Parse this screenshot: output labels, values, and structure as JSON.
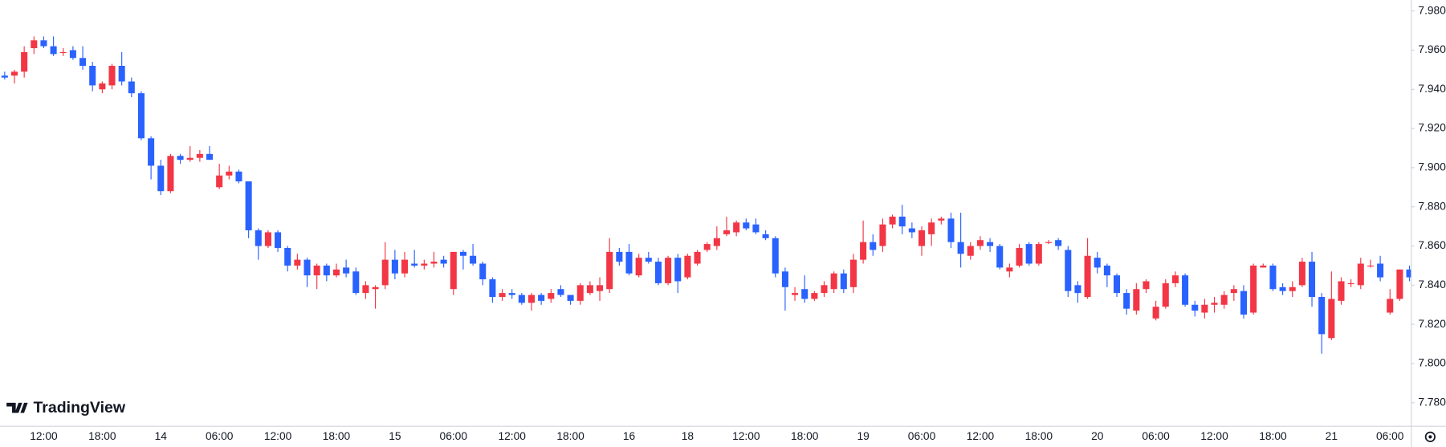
{
  "chart_data": {
    "type": "candlestick",
    "watermark": "TradingView",
    "up_color": "#f23645",
    "down_color": "#2962ff",
    "categories": [
      null,
      null,
      null,
      null,
      "12:00",
      null,
      null,
      null,
      null,
      null,
      "18:00",
      null,
      null,
      null,
      null,
      null,
      "14",
      null,
      null,
      null,
      null,
      null,
      "06:00",
      null,
      null,
      null,
      null,
      null,
      "12:00",
      null,
      null,
      null,
      null,
      null,
      "18:00",
      null,
      null,
      null,
      null,
      null,
      "15",
      null,
      null,
      null,
      null,
      null,
      "06:00",
      null,
      null,
      null,
      null,
      null,
      "12:00",
      null,
      null,
      null,
      null,
      null,
      "18:00",
      null,
      null,
      null,
      null,
      null,
      "16",
      null,
      null,
      null,
      null,
      null,
      "18",
      null,
      null,
      null,
      null,
      null,
      "12:00",
      null,
      null,
      null,
      null,
      null,
      "18:00",
      null,
      null,
      null,
      null,
      null,
      "19",
      null,
      null,
      null,
      null,
      null,
      "06:00",
      null,
      null,
      null,
      null,
      null,
      "12:00",
      null,
      null,
      null,
      null,
      null,
      "18:00",
      null,
      null,
      null,
      null,
      null,
      "20",
      null,
      null,
      null,
      null,
      null,
      "06:00",
      null,
      null,
      null,
      null,
      null,
      "12:00",
      null,
      null,
      null,
      null,
      null,
      "18:00",
      null,
      null,
      null,
      null,
      null,
      "21",
      null,
      null,
      null,
      null,
      null,
      "06:00",
      null,
      null
    ],
    "open": [
      7.947,
      7.947,
      7.949,
      7.961,
      7.965,
      7.962,
      7.959,
      7.96,
      7.956,
      7.952,
      7.94,
      7.942,
      7.952,
      7.944,
      7.938,
      7.915,
      7.901,
      7.888,
      7.906,
      7.904,
      7.905,
      7.907,
      7.89,
      7.896,
      7.898,
      7.893,
      7.868,
      7.86,
      7.867,
      7.859,
      7.85,
      7.853,
      7.845,
      7.85,
      7.845,
      7.849,
      7.847,
      7.836,
      7.838,
      7.84,
      7.853,
      7.846,
      7.851,
      7.85,
      7.851,
      7.853,
      7.838,
      7.857,
      7.855,
      7.851,
      7.843,
      7.834,
      7.836,
      7.835,
      7.831,
      7.835,
      7.833,
      7.838,
      7.835,
      7.832,
      7.836,
      7.837,
      7.838,
      7.857,
      7.857,
      7.845,
      7.854,
      7.852,
      7.841,
      7.854,
      7.844,
      7.851,
      7.858,
      7.86,
      7.866,
      7.867,
      7.872,
      7.871,
      7.866,
      7.864,
      7.847,
      7.835,
      7.838,
      7.833,
      7.836,
      7.838,
      7.846,
      7.839,
      7.853,
      7.862,
      7.86,
      7.871,
      7.875,
      7.869,
      7.86,
      7.866,
      7.873,
      7.874,
      7.862,
      7.855,
      7.86,
      7.862,
      7.86,
      7.847,
      7.85,
      7.861,
      7.851,
      7.862,
      7.863,
      7.858,
      7.84,
      7.834,
      7.854,
      7.85,
      7.845,
      7.836,
      7.827,
      7.838,
      7.823,
      7.829,
      7.841,
      7.845,
      7.83,
      7.826,
      7.83,
      7.83,
      7.836,
      7.837,
      7.826,
      7.849,
      7.85,
      7.839,
      7.837,
      7.84,
      7.852,
      7.834,
      7.813,
      7.832,
      7.841,
      7.84,
      7.85,
      7.851,
      7.826,
      7.833,
      7.848
    ],
    "high": [
      7.949,
      7.95,
      7.962,
      7.967,
      7.967,
      7.967,
      7.961,
      7.962,
      7.962,
      7.954,
      7.944,
      7.953,
      7.959,
      7.946,
      7.939,
      7.916,
      7.904,
      7.907,
      7.907,
      7.911,
      7.909,
      7.911,
      7.902,
      7.901,
      7.899,
      7.893,
      7.869,
      7.868,
      7.868,
      7.86,
      7.856,
      7.854,
      7.851,
      7.851,
      7.851,
      7.853,
      7.849,
      7.842,
      7.84,
      7.862,
      7.858,
      7.857,
      7.858,
      7.853,
      7.857,
      7.855,
      7.857,
      7.858,
      7.861,
      7.852,
      7.844,
      7.838,
      7.838,
      7.836,
      7.836,
      7.836,
      7.838,
      7.84,
      7.835,
      7.841,
      7.842,
      7.844,
      7.864,
      7.859,
      7.861,
      7.856,
      7.857,
      7.854,
      7.855,
      7.856,
      7.856,
      7.858,
      7.862,
      7.87,
      7.875,
      7.873,
      7.874,
      7.874,
      7.868,
      7.865,
      7.849,
      7.839,
      7.845,
      7.837,
      7.842,
      7.847,
      7.848,
      7.856,
      7.873,
      7.866,
      7.874,
      7.876,
      7.881,
      7.872,
      7.87,
      7.874,
      7.875,
      7.877,
      7.877,
      7.862,
      7.865,
      7.864,
      7.861,
      7.851,
      7.861,
      7.862,
      7.862,
      7.863,
      7.864,
      7.86,
      7.842,
      7.864,
      7.857,
      7.851,
      7.846,
      7.838,
      7.841,
      7.843,
      7.832,
      7.843,
      7.847,
      7.846,
      7.832,
      7.833,
      7.834,
      7.837,
      7.84,
      7.84,
      7.851,
      7.851,
      7.851,
      7.841,
      7.842,
      7.854,
      7.857,
      7.836,
      7.847,
      7.844,
      7.843,
      7.854,
      7.853,
      7.855,
      7.838,
      7.848,
      7.85
    ],
    "low": [
      7.945,
      7.943,
      7.946,
      7.958,
      7.961,
      7.957,
      7.957,
      7.955,
      7.95,
      7.939,
      7.938,
      7.94,
      7.942,
      7.936,
      7.914,
      7.894,
      7.886,
      7.887,
      7.902,
      7.903,
      7.903,
      7.904,
      7.889,
      7.894,
      7.892,
      7.864,
      7.853,
      7.859,
      7.857,
      7.847,
      7.848,
      7.839,
      7.838,
      7.842,
      7.844,
      7.844,
      7.835,
      7.833,
      7.828,
      7.838,
      7.843,
      7.844,
      7.849,
      7.848,
      7.849,
      7.849,
      7.835,
      7.848,
      7.85,
      7.84,
      7.831,
      7.832,
      7.833,
      7.83,
      7.827,
      7.83,
      7.831,
      7.834,
      7.83,
      7.83,
      7.835,
      7.832,
      7.836,
      7.85,
      7.845,
      7.844,
      7.851,
      7.84,
      7.84,
      7.836,
      7.843,
      7.85,
      7.857,
      7.858,
      7.865,
      7.865,
      7.868,
      7.866,
      7.863,
      7.844,
      7.827,
      7.832,
      7.831,
      7.832,
      7.834,
      7.836,
      7.836,
      7.836,
      7.851,
      7.855,
      7.857,
      7.869,
      7.866,
      7.864,
      7.855,
      7.86,
      7.871,
      7.859,
      7.849,
      7.853,
      7.858,
      7.857,
      7.848,
      7.844,
      7.849,
      7.85,
      7.85,
      7.861,
      7.858,
      7.834,
      7.831,
      7.833,
      7.846,
      7.839,
      7.834,
      7.825,
      7.825,
      7.836,
      7.822,
      7.828,
      7.839,
      7.829,
      7.824,
      7.823,
      7.826,
      7.828,
      7.832,
      7.823,
      7.825,
      7.849,
      7.837,
      7.835,
      7.834,
      7.839,
      7.829,
      7.805,
      7.812,
      7.83,
      7.839,
      7.838,
      7.849,
      7.842,
      7.825,
      7.832,
      7.842
    ],
    "close": [
      7.946,
      7.949,
      7.959,
      7.965,
      7.962,
      7.958,
      7.959,
      7.956,
      7.952,
      7.942,
      7.943,
      7.952,
      7.944,
      7.938,
      7.915,
      7.901,
      7.888,
      7.906,
      7.904,
      7.905,
      7.907,
      7.904,
      7.896,
      7.898,
      7.893,
      7.868,
      7.86,
      7.867,
      7.859,
      7.85,
      7.853,
      7.845,
      7.85,
      7.845,
      7.848,
      7.846,
      7.836,
      7.84,
      7.839,
      7.853,
      7.846,
      7.853,
      7.85,
      7.851,
      7.852,
      7.851,
      7.857,
      7.855,
      7.851,
      7.843,
      7.834,
      7.836,
      7.835,
      7.831,
      7.835,
      7.832,
      7.836,
      7.835,
      7.832,
      7.84,
      7.84,
      7.84,
      7.857,
      7.852,
      7.846,
      7.854,
      7.852,
      7.841,
      7.854,
      7.842,
      7.855,
      7.857,
      7.861,
      7.864,
      7.868,
      7.872,
      7.869,
      7.867,
      7.864,
      7.846,
      7.839,
      7.836,
      7.833,
      7.836,
      7.84,
      7.846,
      7.838,
      7.853,
      7.862,
      7.858,
      7.871,
      7.875,
      7.87,
      7.867,
      7.868,
      7.872,
      7.874,
      7.862,
      7.856,
      7.86,
      7.863,
      7.86,
      7.849,
      7.849,
      7.859,
      7.851,
      7.861,
      7.862,
      7.86,
      7.837,
      7.836,
      7.855,
      7.849,
      7.845,
      7.836,
      7.828,
      7.838,
      7.842,
      7.829,
      7.841,
      7.845,
      7.83,
      7.827,
      7.83,
      7.831,
      7.835,
      7.838,
      7.825,
      7.85,
      7.85,
      7.838,
      7.837,
      7.839,
      7.852,
      7.834,
      7.815,
      7.833,
      7.842,
      7.841,
      7.851,
      7.85,
      7.844,
      7.833,
      7.848,
      7.844
    ],
    "ylim": [
      7.7682,
      7.9856
    ],
    "yticks": [
      {
        "value": 7.78,
        "label": "7.780"
      },
      {
        "value": 7.8,
        "label": "7.800"
      },
      {
        "value": 7.82,
        "label": "7.820"
      },
      {
        "value": 7.84,
        "label": "7.840"
      },
      {
        "value": 7.86,
        "label": "7.860"
      },
      {
        "value": 7.88,
        "label": "7.880"
      },
      {
        "value": 7.9,
        "label": "7.900"
      },
      {
        "value": 7.92,
        "label": "7.920"
      },
      {
        "value": 7.94,
        "label": "7.940"
      },
      {
        "value": 7.96,
        "label": "7.960"
      },
      {
        "value": 7.98,
        "label": "7.980"
      }
    ]
  }
}
